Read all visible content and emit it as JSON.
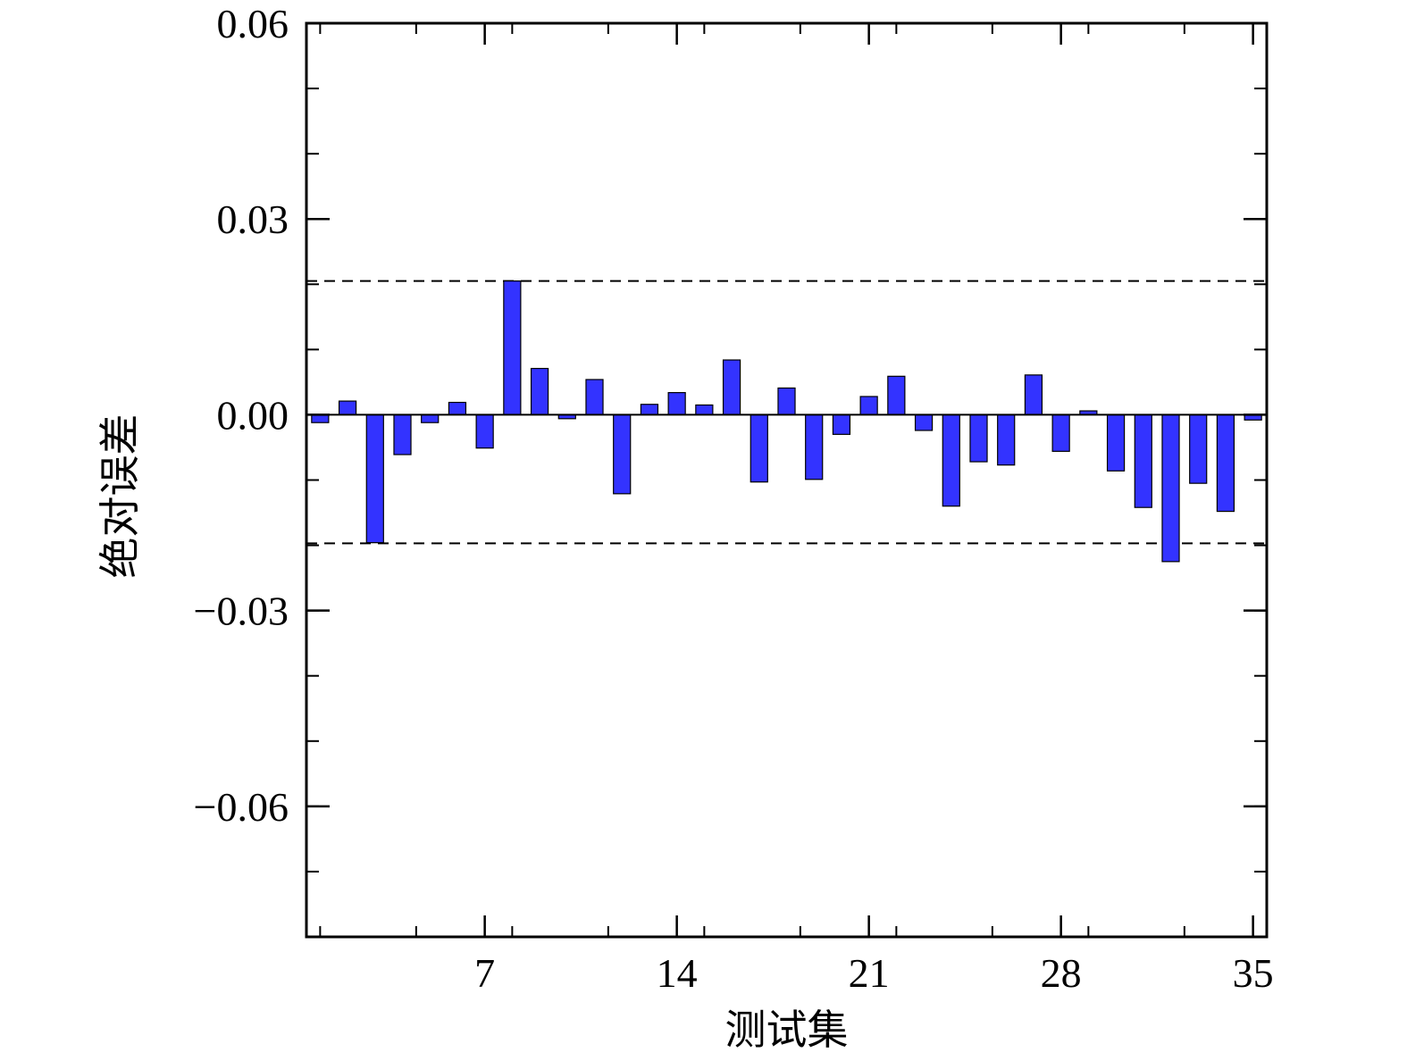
{
  "chart_data": {
    "type": "bar",
    "xlabel": "测试集",
    "ylabel": "绝对误差",
    "ylim": [
      -0.08,
      0.06
    ],
    "xlim": [
      0.5,
      35.5
    ],
    "xticks": [
      7,
      14,
      21,
      28,
      35
    ],
    "xtick_labels": [
      "7",
      "14",
      "21",
      "28",
      "35"
    ],
    "yticks": [
      0.06,
      0.03,
      0.0,
      -0.03,
      -0.06
    ],
    "ytick_labels": [
      "0.06",
      "0.03",
      "0.00",
      "−0.03",
      "−0.06"
    ],
    "x": [
      1,
      2,
      3,
      4,
      5,
      6,
      7,
      8,
      9,
      10,
      11,
      12,
      13,
      14,
      15,
      16,
      17,
      18,
      19,
      20,
      21,
      22,
      23,
      24,
      25,
      26,
      27,
      28,
      29,
      30,
      31,
      32,
      33,
      34,
      35
    ],
    "values": [
      -0.0012,
      0.0021,
      -0.0196,
      -0.0061,
      -0.0012,
      0.0019,
      -0.0051,
      0.0205,
      0.0071,
      -0.0006,
      0.0054,
      -0.0121,
      0.0016,
      0.0034,
      0.0015,
      0.0084,
      -0.0103,
      0.0041,
      -0.0099,
      -0.003,
      0.0028,
      0.0059,
      -0.0024,
      -0.014,
      -0.0072,
      -0.0077,
      0.0061,
      -0.0056,
      0.0006,
      -0.0086,
      -0.0142,
      -0.0225,
      -0.0105,
      -0.0148,
      -0.0008
    ],
    "reference_lines": [
      0.0205,
      -0.0197
    ],
    "grid": false,
    "bar_color": "#3333ff",
    "bar_edge_color": "#000000"
  }
}
